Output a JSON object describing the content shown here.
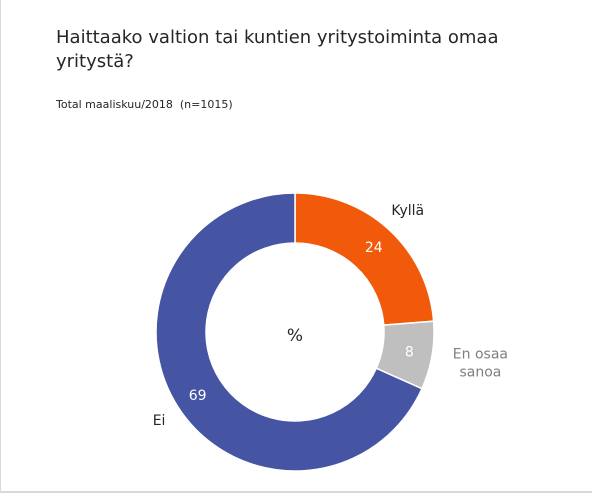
{
  "chart_data": {
    "type": "pie",
    "variant": "donut",
    "title": "Haittaako valtion tai kuntien yritystoiminta omaa yritystä?",
    "subtitle": "Total maaliskuu/2018  (n=1015)",
    "center_label": "%",
    "slices": [
      {
        "category": "Kyllä",
        "value": 24,
        "color": "#f05a0a",
        "label_color": "#262626"
      },
      {
        "category": "En osaa sanoa",
        "value": 8,
        "color": "#bfbfbf",
        "label_color": "#7f7f7f"
      },
      {
        "category": "Ei",
        "value": 69,
        "color": "#4654a4",
        "label_color": "#262626"
      }
    ],
    "category_label_lines": [
      [
        "Kyllä"
      ],
      [
        "En osaa",
        "sanoa"
      ],
      [
        "Ei"
      ]
    ],
    "value_label_color": "#ffffff",
    "legend": "none"
  }
}
